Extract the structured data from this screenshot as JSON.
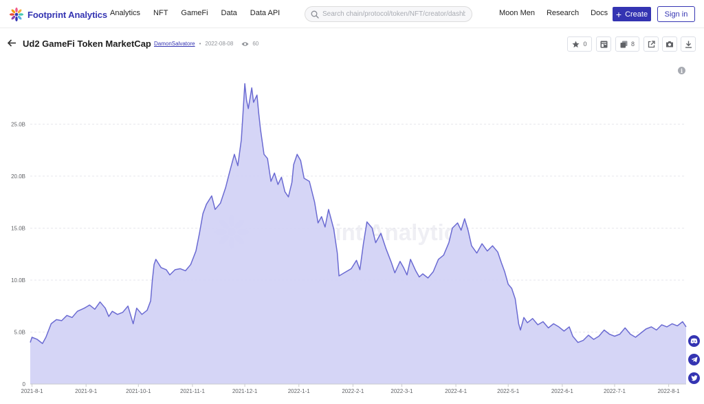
{
  "brand": {
    "name": "Footprint Analytics"
  },
  "nav": {
    "items": [
      "Analytics",
      "NFT",
      "GameFi",
      "Data",
      "Data API"
    ]
  },
  "search": {
    "placeholder": "Search chain/protocol/token/NFT/creator/dashbo"
  },
  "right_nav": {
    "items": [
      "Moon Men",
      "Research",
      "Docs"
    ]
  },
  "actions": {
    "create_label": "Create",
    "signin_label": "Sign in"
  },
  "page": {
    "title": "Ud2 GameFi Token MarketCap",
    "author": "DamonSalvatore",
    "date": "2022-08-08",
    "views": "60",
    "favorites": "0",
    "copies": "8"
  },
  "watermark": "Footprint Analytics",
  "colors": {
    "brand": "#3434b2",
    "line": "#6a6ad2",
    "fill": "#d3d3f5"
  },
  "chart_data": {
    "type": "area",
    "title": "",
    "xlabel": "",
    "ylabel": "",
    "x_range": [
      "2021-07-31",
      "2022-08-11"
    ],
    "ylim": [
      0,
      29
    ],
    "y_ticks": [
      0,
      5,
      10,
      15,
      20,
      25
    ],
    "y_tick_labels": [
      "0",
      "5.0B",
      "10.0B",
      "15.0B",
      "20.0B",
      "25.0B"
    ],
    "x_tick_labels": [
      "2021-8-1",
      "2021-9-1",
      "2021-10-1",
      "2021-11-1",
      "2021-12-1",
      "2022-1-1",
      "2022-2-1",
      "2022-3-1",
      "2022-4-1",
      "2022-5-1",
      "2022-6-1",
      "2022-7-1",
      "2022-8-1"
    ],
    "grid": true,
    "unit": "B",
    "series": [
      {
        "values": [
          [
            "2021-07-31",
            4.0
          ],
          [
            "2021-08-01",
            4.5
          ],
          [
            "2021-08-04",
            4.3
          ],
          [
            "2021-08-07",
            3.9
          ],
          [
            "2021-08-09",
            4.5
          ],
          [
            "2021-08-12",
            5.8
          ],
          [
            "2021-08-15",
            6.2
          ],
          [
            "2021-08-18",
            6.1
          ],
          [
            "2021-08-21",
            6.6
          ],
          [
            "2021-08-24",
            6.4
          ],
          [
            "2021-08-27",
            7.0
          ],
          [
            "2021-08-31",
            7.3
          ],
          [
            "2021-09-03",
            7.6
          ],
          [
            "2021-09-06",
            7.2
          ],
          [
            "2021-09-09",
            7.9
          ],
          [
            "2021-09-12",
            7.3
          ],
          [
            "2021-09-14",
            6.5
          ],
          [
            "2021-09-16",
            7.0
          ],
          [
            "2021-09-19",
            6.7
          ],
          [
            "2021-09-22",
            6.9
          ],
          [
            "2021-09-25",
            7.5
          ],
          [
            "2021-09-28",
            5.8
          ],
          [
            "2021-09-30",
            7.3
          ],
          [
            "2021-10-03",
            6.7
          ],
          [
            "2021-10-06",
            7.1
          ],
          [
            "2021-10-08",
            8.0
          ],
          [
            "2021-10-09",
            10.0
          ],
          [
            "2021-10-10",
            11.5
          ],
          [
            "2021-10-11",
            12.0
          ],
          [
            "2021-10-14",
            11.2
          ],
          [
            "2021-10-17",
            11.0
          ],
          [
            "2021-10-19",
            10.5
          ],
          [
            "2021-10-22",
            11.0
          ],
          [
            "2021-10-25",
            11.1
          ],
          [
            "2021-10-28",
            10.9
          ],
          [
            "2021-10-31",
            11.5
          ],
          [
            "2021-11-03",
            12.8
          ],
          [
            "2021-11-05",
            14.5
          ],
          [
            "2021-11-07",
            16.4
          ],
          [
            "2021-11-09",
            17.3
          ],
          [
            "2021-11-12",
            18.1
          ],
          [
            "2021-11-14",
            16.8
          ],
          [
            "2021-11-17",
            17.4
          ],
          [
            "2021-11-20",
            18.9
          ],
          [
            "2021-11-22",
            20.2
          ],
          [
            "2021-11-25",
            22.1
          ],
          [
            "2021-11-27",
            21.0
          ],
          [
            "2021-11-29",
            23.5
          ],
          [
            "2021-11-30",
            26.1
          ],
          [
            "2021-12-01",
            28.9
          ],
          [
            "2021-12-02",
            27.3
          ],
          [
            "2021-12-03",
            26.5
          ],
          [
            "2021-12-05",
            28.5
          ],
          [
            "2021-12-06",
            27.1
          ],
          [
            "2021-12-08",
            27.8
          ],
          [
            "2021-12-09",
            26.0
          ],
          [
            "2021-12-10",
            24.5
          ],
          [
            "2021-12-12",
            22.1
          ],
          [
            "2021-12-14",
            21.7
          ],
          [
            "2021-12-16",
            19.5
          ],
          [
            "2021-12-18",
            20.3
          ],
          [
            "2021-12-20",
            19.2
          ],
          [
            "2021-12-22",
            19.9
          ],
          [
            "2021-12-24",
            18.5
          ],
          [
            "2021-12-26",
            18.0
          ],
          [
            "2021-12-28",
            19.4
          ],
          [
            "2021-12-29",
            21.1
          ],
          [
            "2021-12-31",
            22.1
          ],
          [
            "2022-01-02",
            21.5
          ],
          [
            "2022-01-04",
            19.8
          ],
          [
            "2022-01-07",
            19.5
          ],
          [
            "2022-01-10",
            17.5
          ],
          [
            "2022-01-12",
            15.5
          ],
          [
            "2022-01-14",
            16.1
          ],
          [
            "2022-01-16",
            15.1
          ],
          [
            "2022-01-18",
            16.8
          ],
          [
            "2022-01-21",
            14.9
          ],
          [
            "2022-01-23",
            12.6
          ],
          [
            "2022-01-24",
            10.4
          ],
          [
            "2022-01-27",
            10.7
          ],
          [
            "2022-01-31",
            11.1
          ],
          [
            "2022-02-03",
            11.9
          ],
          [
            "2022-02-05",
            11.0
          ],
          [
            "2022-02-07",
            13.5
          ],
          [
            "2022-02-09",
            15.6
          ],
          [
            "2022-02-12",
            15.0
          ],
          [
            "2022-02-14",
            13.6
          ],
          [
            "2022-02-17",
            14.5
          ],
          [
            "2022-02-20",
            13.0
          ],
          [
            "2022-02-23",
            11.7
          ],
          [
            "2022-02-25",
            10.7
          ],
          [
            "2022-02-28",
            11.8
          ],
          [
            "2022-03-02",
            11.2
          ],
          [
            "2022-03-04",
            10.5
          ],
          [
            "2022-03-06",
            12.0
          ],
          [
            "2022-03-09",
            10.9
          ],
          [
            "2022-03-11",
            10.3
          ],
          [
            "2022-03-13",
            10.6
          ],
          [
            "2022-03-16",
            10.2
          ],
          [
            "2022-03-19",
            10.8
          ],
          [
            "2022-03-22",
            12.0
          ],
          [
            "2022-03-25",
            12.4
          ],
          [
            "2022-03-28",
            13.6
          ],
          [
            "2022-03-30",
            15.0
          ],
          [
            "2022-04-02",
            15.5
          ],
          [
            "2022-04-04",
            14.8
          ],
          [
            "2022-04-06",
            15.9
          ],
          [
            "2022-04-08",
            14.8
          ],
          [
            "2022-04-10",
            13.3
          ],
          [
            "2022-04-13",
            12.6
          ],
          [
            "2022-04-16",
            13.5
          ],
          [
            "2022-04-19",
            12.8
          ],
          [
            "2022-04-22",
            13.3
          ],
          [
            "2022-04-25",
            12.7
          ],
          [
            "2022-04-27",
            11.7
          ],
          [
            "2022-04-29",
            10.8
          ],
          [
            "2022-05-01",
            9.6
          ],
          [
            "2022-05-03",
            9.2
          ],
          [
            "2022-05-05",
            8.2
          ],
          [
            "2022-05-07",
            5.8
          ],
          [
            "2022-05-08",
            5.2
          ],
          [
            "2022-05-10",
            6.4
          ],
          [
            "2022-05-12",
            5.9
          ],
          [
            "2022-05-15",
            6.3
          ],
          [
            "2022-05-18",
            5.7
          ],
          [
            "2022-05-21",
            6.0
          ],
          [
            "2022-05-24",
            5.4
          ],
          [
            "2022-05-27",
            5.8
          ],
          [
            "2022-05-30",
            5.5
          ],
          [
            "2022-06-02",
            5.1
          ],
          [
            "2022-06-05",
            5.5
          ],
          [
            "2022-06-07",
            4.6
          ],
          [
            "2022-06-10",
            4.0
          ],
          [
            "2022-06-13",
            4.2
          ],
          [
            "2022-06-16",
            4.7
          ],
          [
            "2022-06-19",
            4.3
          ],
          [
            "2022-06-22",
            4.6
          ],
          [
            "2022-06-25",
            5.2
          ],
          [
            "2022-06-28",
            4.8
          ],
          [
            "2022-07-01",
            4.6
          ],
          [
            "2022-07-04",
            4.8
          ],
          [
            "2022-07-07",
            5.4
          ],
          [
            "2022-07-10",
            4.8
          ],
          [
            "2022-07-13",
            4.5
          ],
          [
            "2022-07-16",
            4.9
          ],
          [
            "2022-07-19",
            5.3
          ],
          [
            "2022-07-22",
            5.5
          ],
          [
            "2022-07-25",
            5.2
          ],
          [
            "2022-07-28",
            5.7
          ],
          [
            "2022-07-31",
            5.5
          ],
          [
            "2022-08-03",
            5.8
          ],
          [
            "2022-08-06",
            5.6
          ],
          [
            "2022-08-09",
            6.0
          ],
          [
            "2022-08-11",
            5.5
          ]
        ]
      }
    ]
  }
}
